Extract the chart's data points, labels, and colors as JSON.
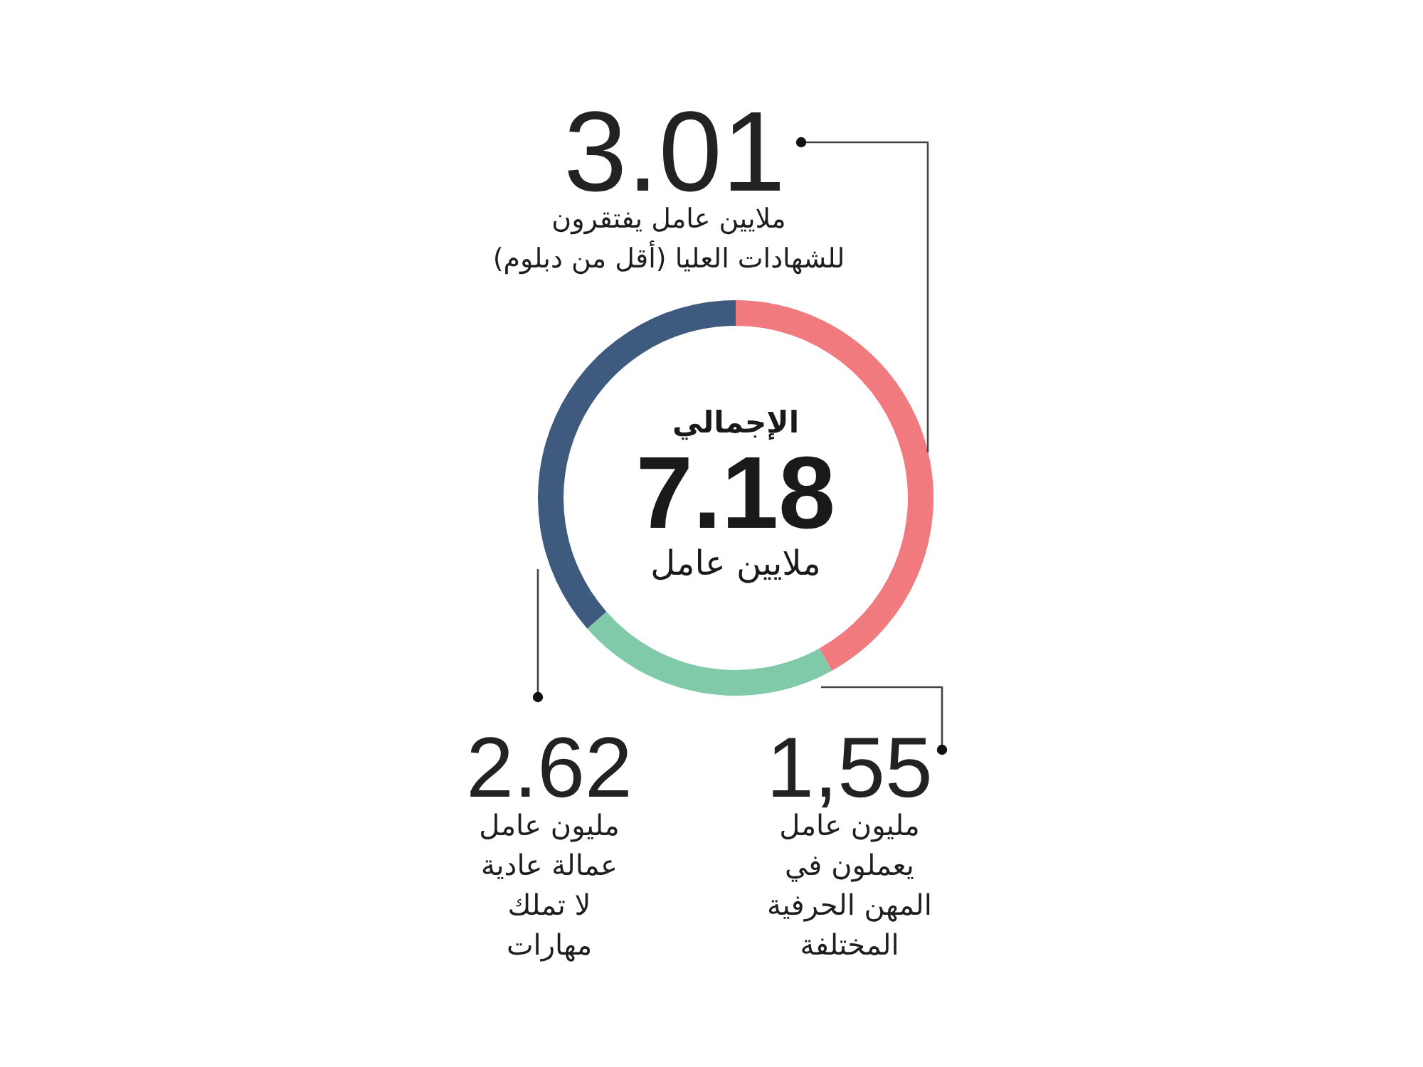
{
  "chart_data": {
    "type": "donut",
    "categories": [
      "ملايين عامل يفتقرون للشهادات العليا (أقل من دبلوم)",
      "مليون عامل يعملون في المهن الحرفية المختلفة",
      "مليون عامل عمالة عادية لا تملك مهارات"
    ],
    "values": [
      3.01,
      1.55,
      2.62
    ],
    "colors": [
      "#f07a7e",
      "#80c9a9",
      "#3e5a7f"
    ],
    "value_labels": [
      "3.01",
      "1,55",
      "2.62"
    ],
    "annotations": [
      "الإجمالي",
      "7.18",
      "ملايين عامل"
    ]
  }
}
